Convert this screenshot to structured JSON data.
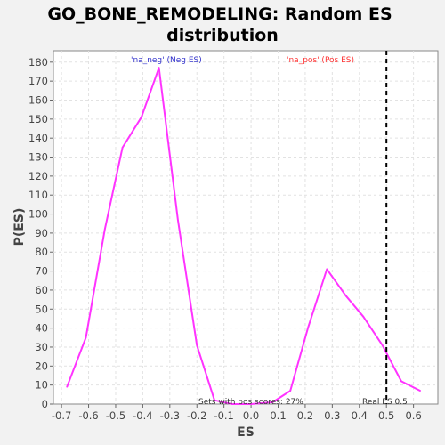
{
  "chart_data": {
    "type": "line",
    "title_lines": [
      "GO_BONE_REMODELING: Random ES",
      "distribution"
    ],
    "xlabel": "ES",
    "ylabel": "P(ES)",
    "xlim": [
      -0.73,
      0.69
    ],
    "ylim": [
      0,
      186
    ],
    "xticks": [
      -0.7,
      -0.6,
      -0.5,
      -0.4,
      -0.3,
      -0.2,
      -0.1,
      0.0,
      0.1,
      0.2,
      0.3,
      0.4,
      0.5,
      0.6
    ],
    "xtick_labels": [
      "-0.7",
      "-0.6",
      "-0.5",
      "-0.4",
      "-0.3",
      "-0.2",
      "-0.1",
      "0.0",
      "0.1",
      "0.2",
      "0.3",
      "0.4",
      "0.5",
      "0.6"
    ],
    "yticks": [
      0,
      10,
      20,
      30,
      40,
      50,
      60,
      70,
      80,
      90,
      100,
      110,
      120,
      130,
      140,
      150,
      160,
      170,
      180
    ],
    "ytick_labels": [
      "0",
      "10",
      "20",
      "30",
      "40",
      "50",
      "60",
      "70",
      "80",
      "90",
      "100",
      "110",
      "120",
      "130",
      "140",
      "150",
      "160",
      "170",
      "180"
    ],
    "grid": true,
    "series": [
      {
        "name": "random-es-distribution",
        "color": "#ff33ff",
        "x": [
          -0.68,
          -0.61,
          -0.54,
          -0.475,
          -0.405,
          -0.34,
          -0.27,
          -0.2,
          -0.135,
          -0.07,
          0.0,
          0.08,
          0.145,
          0.21,
          0.28,
          0.35,
          0.415,
          0.485,
          0.555,
          0.625
        ],
        "y": [
          9,
          35,
          92,
          135,
          151,
          177,
          97,
          31,
          2,
          0,
          0,
          1,
          7,
          40,
          71,
          57,
          46,
          31,
          12,
          7
        ]
      }
    ],
    "legend_neg": {
      "text": "'na_neg' (Neg ES)",
      "color": "#3333cc"
    },
    "legend_pos": {
      "text": "'na_pos' (Pos ES)",
      "color": "#ff3333"
    },
    "real_es": {
      "value": 0.5,
      "label": "Real ES 0.5"
    },
    "annotation": "Sets with pos scores: 27%"
  }
}
